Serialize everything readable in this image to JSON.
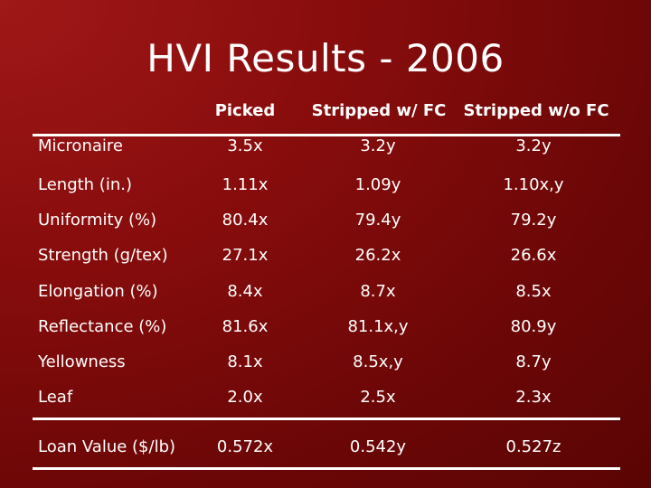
{
  "title": "HVI Results - 2006",
  "columns": [
    "Picked",
    "Stripped w/ FC",
    "Stripped w/o FC"
  ],
  "rows": [
    {
      "label": "Micronaire",
      "values": [
        "3.5x",
        "3.2y",
        "3.2y"
      ]
    },
    {
      "label": "Length (in.)",
      "values": [
        "1.11x",
        "1.09y",
        "1.10x,y"
      ]
    },
    {
      "label": "Uniformity (%)",
      "values": [
        "80.4x",
        "79.4y",
        "79.2y"
      ]
    },
    {
      "label": "Strength (g/tex)",
      "values": [
        "27.1x",
        "26.2x",
        "26.6x"
      ]
    },
    {
      "label": "Elongation (%)",
      "values": [
        "8.4x",
        "8.7x",
        "8.5x"
      ]
    },
    {
      "label": "Reflectance (%)",
      "values": [
        "81.6x",
        "81.1x,y",
        "80.9y"
      ]
    },
    {
      "label": "Yellowness",
      "values": [
        "8.1x",
        "8.5x,y",
        "8.7y"
      ]
    },
    {
      "label": "Leaf",
      "values": [
        "2.0x",
        "2.5x",
        "2.3x"
      ]
    }
  ],
  "footer_row": {
    "label": "Loan Value ($/lb)",
    "values": [
      "0.572x",
      "0.542y",
      "0.527z"
    ]
  }
}
